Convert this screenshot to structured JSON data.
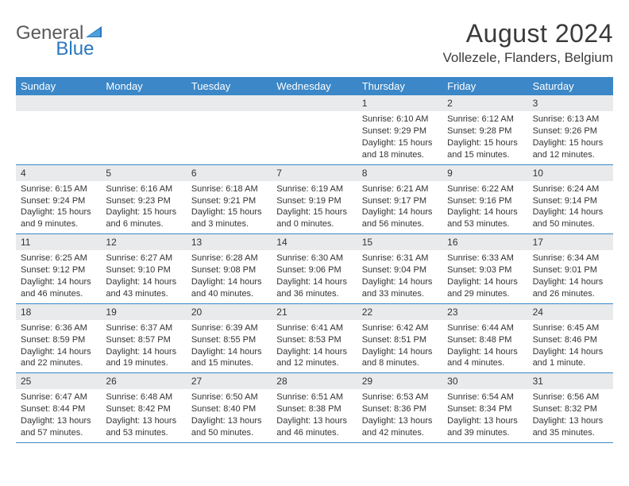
{
  "logo": {
    "text1": "General",
    "text2": "Blue"
  },
  "title": "August 2024",
  "location": "Vollezele, Flanders, Belgium",
  "colors": {
    "header_bg": "#3b87c8",
    "header_text": "#ffffff",
    "daynum_bg": "#e9eaec",
    "border": "#3b87c8",
    "text": "#333333",
    "logo_gray": "#5a5a5a",
    "logo_blue": "#2a78bd"
  },
  "day_names": [
    "Sunday",
    "Monday",
    "Tuesday",
    "Wednesday",
    "Thursday",
    "Friday",
    "Saturday"
  ],
  "weeks": [
    [
      {
        "empty": true
      },
      {
        "empty": true
      },
      {
        "empty": true
      },
      {
        "empty": true
      },
      {
        "day": "1",
        "sunrise": "Sunrise: 6:10 AM",
        "sunset": "Sunset: 9:29 PM",
        "daylight1": "Daylight: 15 hours",
        "daylight2": "and 18 minutes."
      },
      {
        "day": "2",
        "sunrise": "Sunrise: 6:12 AM",
        "sunset": "Sunset: 9:28 PM",
        "daylight1": "Daylight: 15 hours",
        "daylight2": "and 15 minutes."
      },
      {
        "day": "3",
        "sunrise": "Sunrise: 6:13 AM",
        "sunset": "Sunset: 9:26 PM",
        "daylight1": "Daylight: 15 hours",
        "daylight2": "and 12 minutes."
      }
    ],
    [
      {
        "day": "4",
        "sunrise": "Sunrise: 6:15 AM",
        "sunset": "Sunset: 9:24 PM",
        "daylight1": "Daylight: 15 hours",
        "daylight2": "and 9 minutes."
      },
      {
        "day": "5",
        "sunrise": "Sunrise: 6:16 AM",
        "sunset": "Sunset: 9:23 PM",
        "daylight1": "Daylight: 15 hours",
        "daylight2": "and 6 minutes."
      },
      {
        "day": "6",
        "sunrise": "Sunrise: 6:18 AM",
        "sunset": "Sunset: 9:21 PM",
        "daylight1": "Daylight: 15 hours",
        "daylight2": "and 3 minutes."
      },
      {
        "day": "7",
        "sunrise": "Sunrise: 6:19 AM",
        "sunset": "Sunset: 9:19 PM",
        "daylight1": "Daylight: 15 hours",
        "daylight2": "and 0 minutes."
      },
      {
        "day": "8",
        "sunrise": "Sunrise: 6:21 AM",
        "sunset": "Sunset: 9:17 PM",
        "daylight1": "Daylight: 14 hours",
        "daylight2": "and 56 minutes."
      },
      {
        "day": "9",
        "sunrise": "Sunrise: 6:22 AM",
        "sunset": "Sunset: 9:16 PM",
        "daylight1": "Daylight: 14 hours",
        "daylight2": "and 53 minutes."
      },
      {
        "day": "10",
        "sunrise": "Sunrise: 6:24 AM",
        "sunset": "Sunset: 9:14 PM",
        "daylight1": "Daylight: 14 hours",
        "daylight2": "and 50 minutes."
      }
    ],
    [
      {
        "day": "11",
        "sunrise": "Sunrise: 6:25 AM",
        "sunset": "Sunset: 9:12 PM",
        "daylight1": "Daylight: 14 hours",
        "daylight2": "and 46 minutes."
      },
      {
        "day": "12",
        "sunrise": "Sunrise: 6:27 AM",
        "sunset": "Sunset: 9:10 PM",
        "daylight1": "Daylight: 14 hours",
        "daylight2": "and 43 minutes."
      },
      {
        "day": "13",
        "sunrise": "Sunrise: 6:28 AM",
        "sunset": "Sunset: 9:08 PM",
        "daylight1": "Daylight: 14 hours",
        "daylight2": "and 40 minutes."
      },
      {
        "day": "14",
        "sunrise": "Sunrise: 6:30 AM",
        "sunset": "Sunset: 9:06 PM",
        "daylight1": "Daylight: 14 hours",
        "daylight2": "and 36 minutes."
      },
      {
        "day": "15",
        "sunrise": "Sunrise: 6:31 AM",
        "sunset": "Sunset: 9:04 PM",
        "daylight1": "Daylight: 14 hours",
        "daylight2": "and 33 minutes."
      },
      {
        "day": "16",
        "sunrise": "Sunrise: 6:33 AM",
        "sunset": "Sunset: 9:03 PM",
        "daylight1": "Daylight: 14 hours",
        "daylight2": "and 29 minutes."
      },
      {
        "day": "17",
        "sunrise": "Sunrise: 6:34 AM",
        "sunset": "Sunset: 9:01 PM",
        "daylight1": "Daylight: 14 hours",
        "daylight2": "and 26 minutes."
      }
    ],
    [
      {
        "day": "18",
        "sunrise": "Sunrise: 6:36 AM",
        "sunset": "Sunset: 8:59 PM",
        "daylight1": "Daylight: 14 hours",
        "daylight2": "and 22 minutes."
      },
      {
        "day": "19",
        "sunrise": "Sunrise: 6:37 AM",
        "sunset": "Sunset: 8:57 PM",
        "daylight1": "Daylight: 14 hours",
        "daylight2": "and 19 minutes."
      },
      {
        "day": "20",
        "sunrise": "Sunrise: 6:39 AM",
        "sunset": "Sunset: 8:55 PM",
        "daylight1": "Daylight: 14 hours",
        "daylight2": "and 15 minutes."
      },
      {
        "day": "21",
        "sunrise": "Sunrise: 6:41 AM",
        "sunset": "Sunset: 8:53 PM",
        "daylight1": "Daylight: 14 hours",
        "daylight2": "and 12 minutes."
      },
      {
        "day": "22",
        "sunrise": "Sunrise: 6:42 AM",
        "sunset": "Sunset: 8:51 PM",
        "daylight1": "Daylight: 14 hours",
        "daylight2": "and 8 minutes."
      },
      {
        "day": "23",
        "sunrise": "Sunrise: 6:44 AM",
        "sunset": "Sunset: 8:48 PM",
        "daylight1": "Daylight: 14 hours",
        "daylight2": "and 4 minutes."
      },
      {
        "day": "24",
        "sunrise": "Sunrise: 6:45 AM",
        "sunset": "Sunset: 8:46 PM",
        "daylight1": "Daylight: 14 hours",
        "daylight2": "and 1 minute."
      }
    ],
    [
      {
        "day": "25",
        "sunrise": "Sunrise: 6:47 AM",
        "sunset": "Sunset: 8:44 PM",
        "daylight1": "Daylight: 13 hours",
        "daylight2": "and 57 minutes."
      },
      {
        "day": "26",
        "sunrise": "Sunrise: 6:48 AM",
        "sunset": "Sunset: 8:42 PM",
        "daylight1": "Daylight: 13 hours",
        "daylight2": "and 53 minutes."
      },
      {
        "day": "27",
        "sunrise": "Sunrise: 6:50 AM",
        "sunset": "Sunset: 8:40 PM",
        "daylight1": "Daylight: 13 hours",
        "daylight2": "and 50 minutes."
      },
      {
        "day": "28",
        "sunrise": "Sunrise: 6:51 AM",
        "sunset": "Sunset: 8:38 PM",
        "daylight1": "Daylight: 13 hours",
        "daylight2": "and 46 minutes."
      },
      {
        "day": "29",
        "sunrise": "Sunrise: 6:53 AM",
        "sunset": "Sunset: 8:36 PM",
        "daylight1": "Daylight: 13 hours",
        "daylight2": "and 42 minutes."
      },
      {
        "day": "30",
        "sunrise": "Sunrise: 6:54 AM",
        "sunset": "Sunset: 8:34 PM",
        "daylight1": "Daylight: 13 hours",
        "daylight2": "and 39 minutes."
      },
      {
        "day": "31",
        "sunrise": "Sunrise: 6:56 AM",
        "sunset": "Sunset: 8:32 PM",
        "daylight1": "Daylight: 13 hours",
        "daylight2": "and 35 minutes."
      }
    ]
  ]
}
